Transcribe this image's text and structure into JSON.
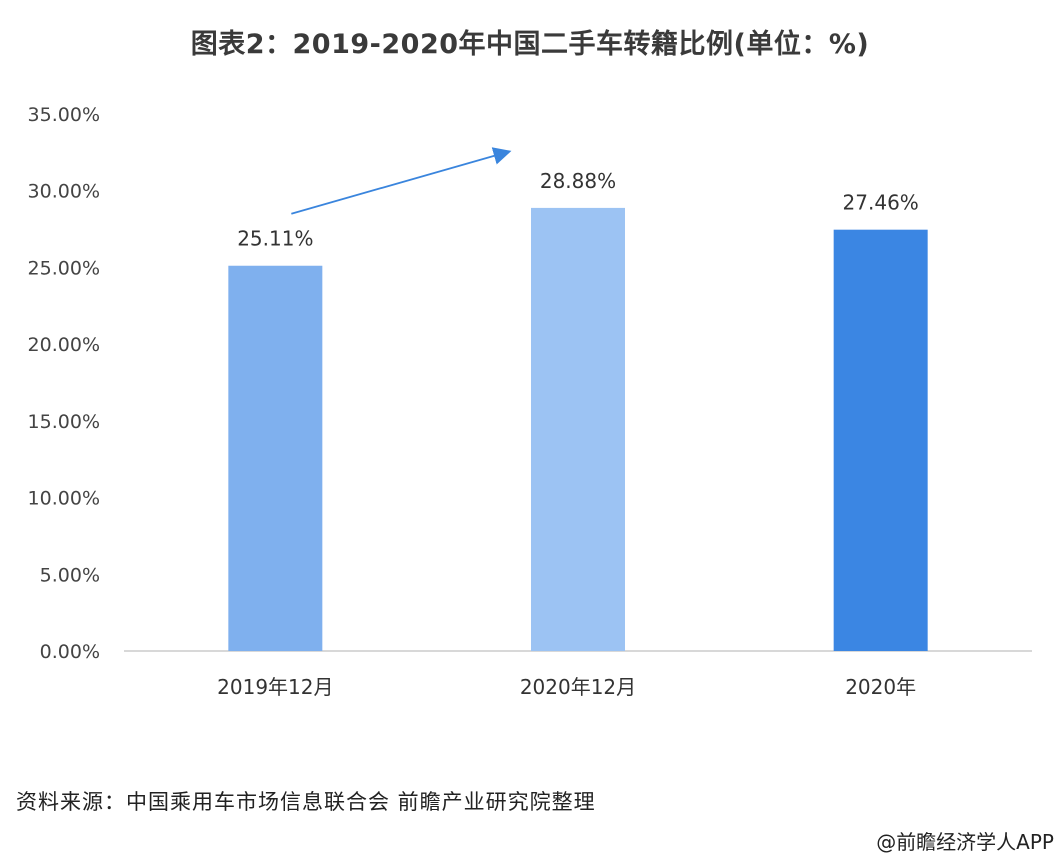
{
  "title": "图表2：2019-2020年中国二手车转籍比例(单位：%)",
  "chart_data": {
    "type": "bar",
    "title": "图表2：2019-2020年中国二手车转籍比例(单位：%)",
    "categories": [
      "2019年12月",
      "2020年12月",
      "2020年"
    ],
    "values": [
      25.11,
      28.88,
      27.46
    ],
    "value_labels": [
      "25.11%",
      "28.88%",
      "27.46%"
    ],
    "bar_colors": [
      "#7fb0ee",
      "#9cc3f3",
      "#3b86e3"
    ],
    "xlabel": "",
    "ylabel": "",
    "ylim": [
      0,
      35
    ],
    "yticks": [
      0,
      5,
      10,
      15,
      20,
      25,
      30,
      35
    ],
    "ytick_labels": [
      "0.00%",
      "5.00%",
      "10.00%",
      "15.00%",
      "20.00%",
      "25.00%",
      "30.00%",
      "35.00%"
    ],
    "grid": false,
    "legend": "none",
    "annotation": "upward trend arrow from 2019年12月 toward 2020年12月",
    "arrow_color": "#3a85dd"
  },
  "source": "资料来源：中国乘用车市场信息联合会 前瞻产业研究院整理",
  "credit": "@前瞻经济学人APP"
}
